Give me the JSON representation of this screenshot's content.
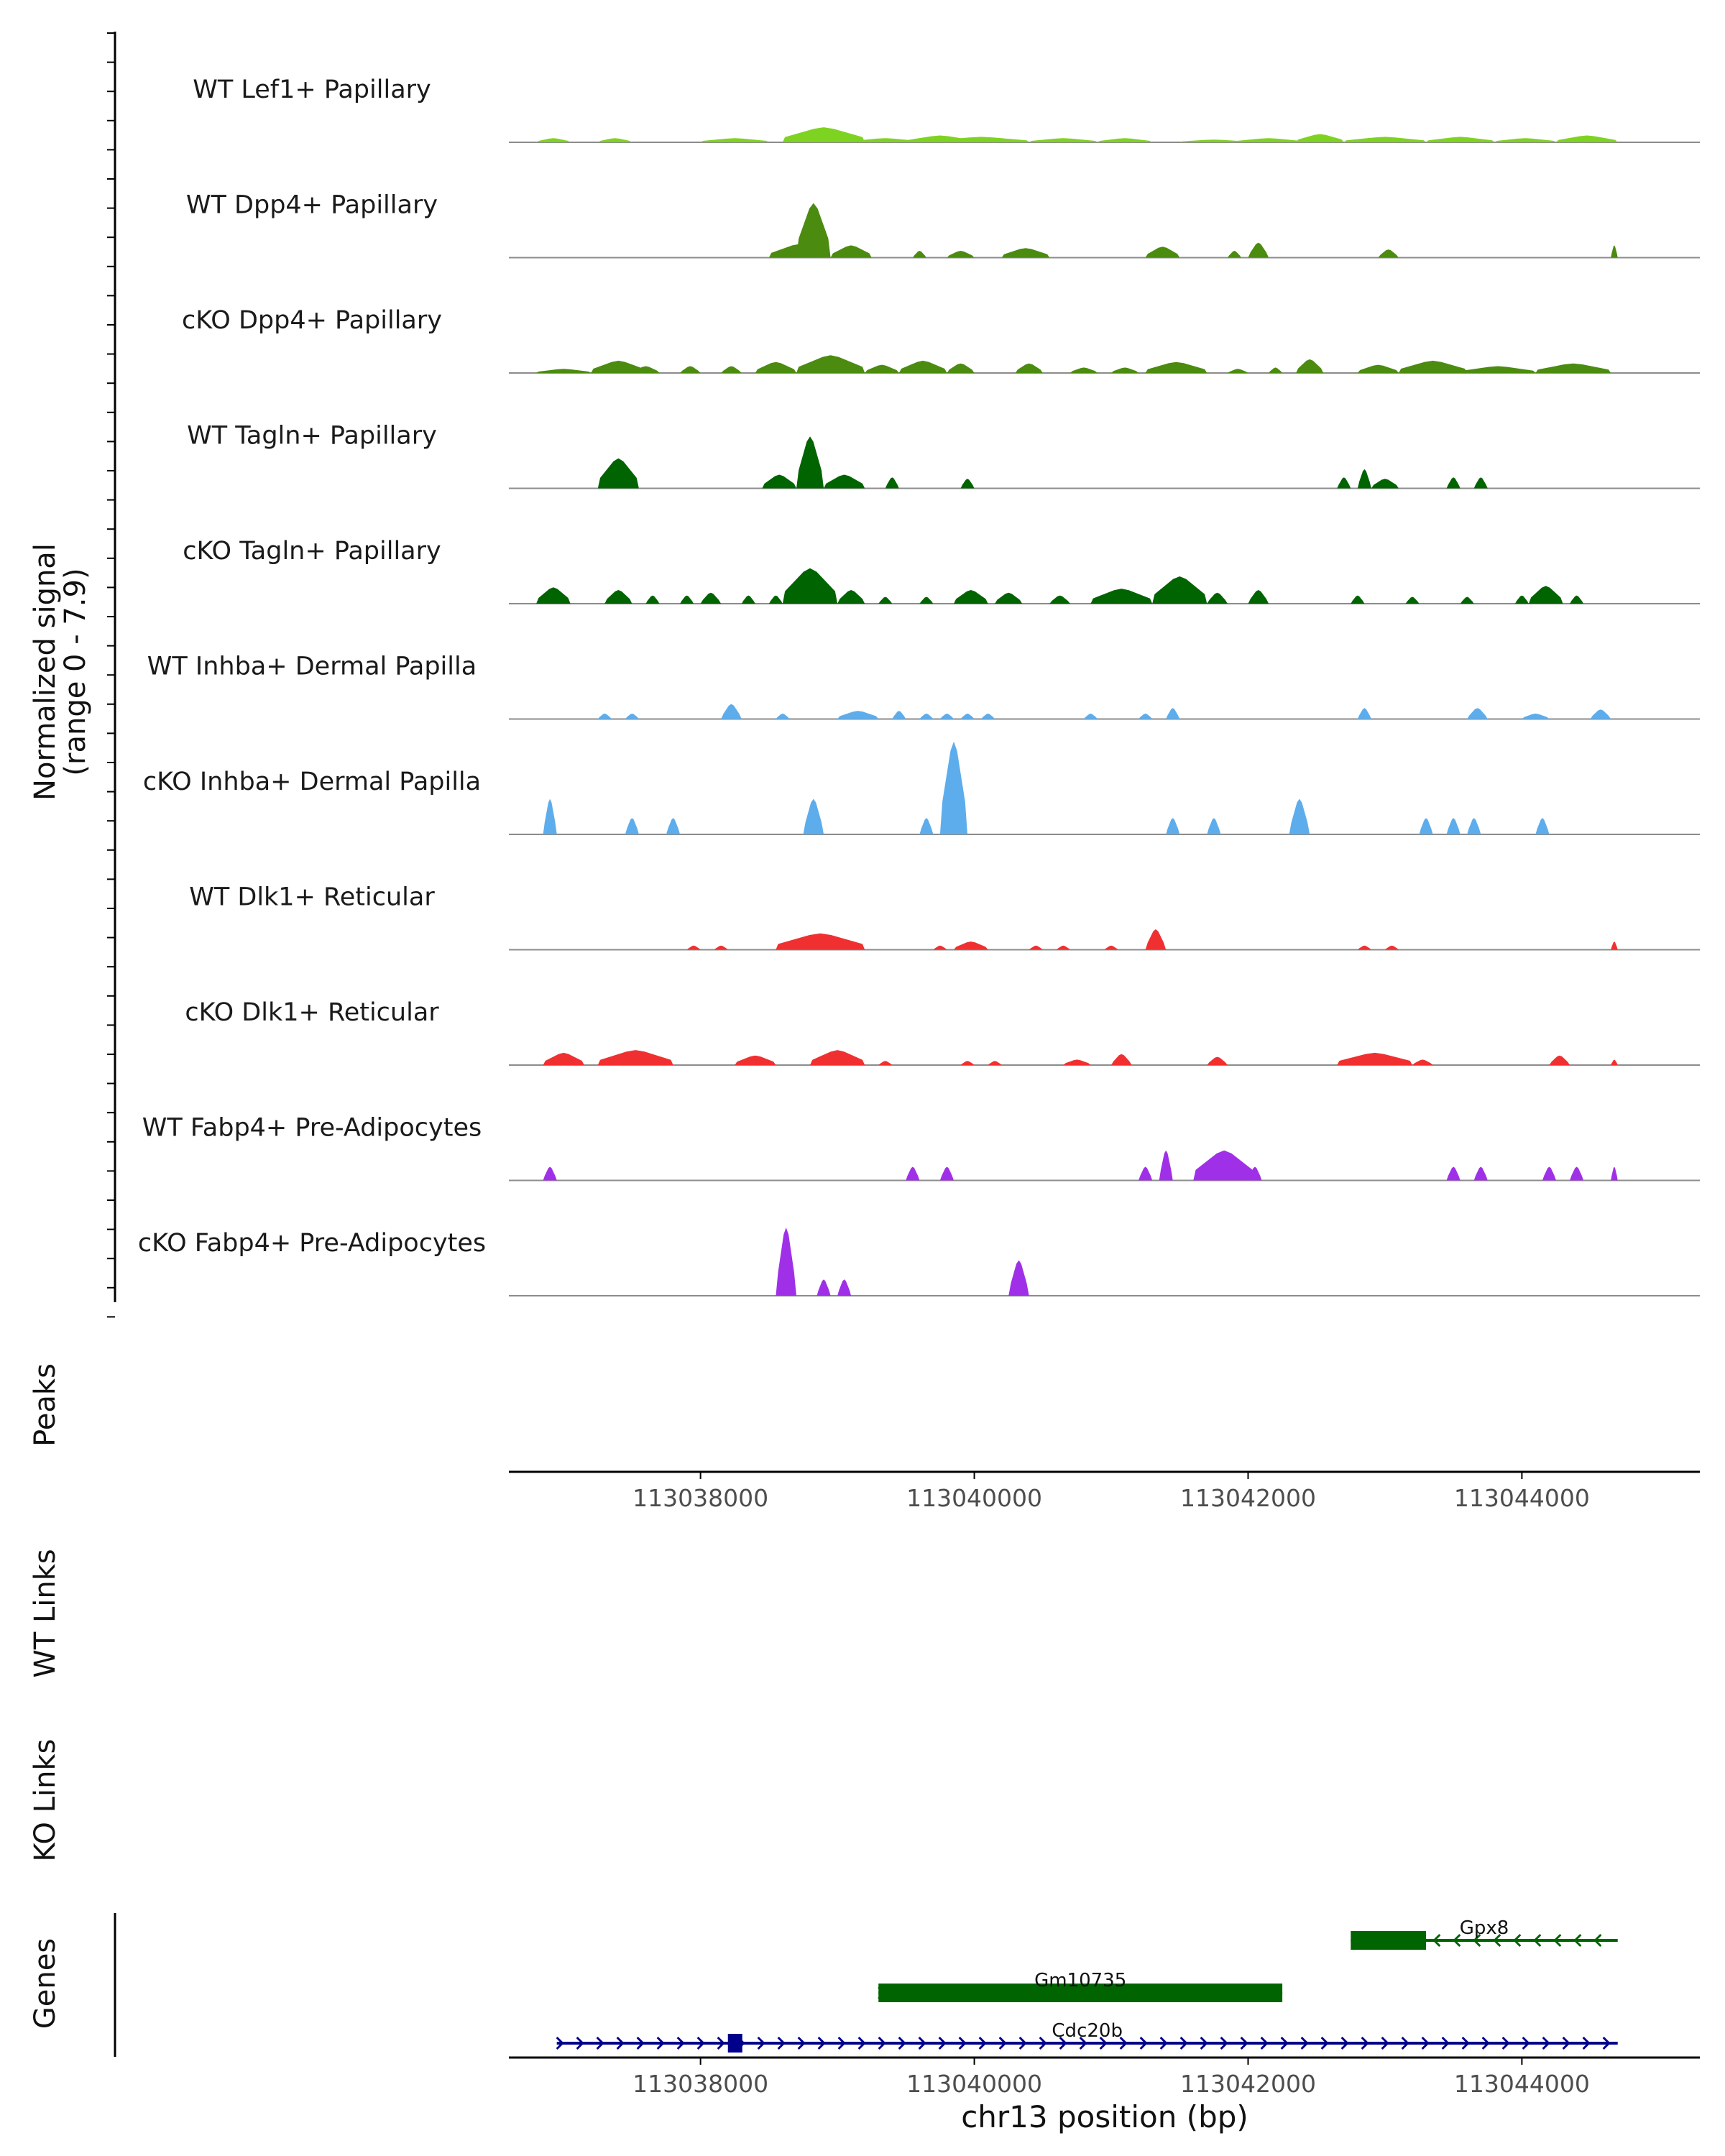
{
  "chart_data": {
    "type": "area",
    "title": "",
    "region": {
      "chrom": "chr13",
      "start": 113036600,
      "end": 113045300
    },
    "signal_axis": {
      "label": "Normalized signal",
      "range_label": "(range 0 - 7.9)",
      "ylim": [
        0,
        7.9
      ]
    },
    "tracks": [
      {
        "name": "WT Lef1+ Papillary",
        "color": "#7ED321",
        "peaks": [
          [
            113036800,
            113037050,
            0.3
          ],
          [
            113037250,
            113037500,
            0.3
          ],
          [
            113038000,
            113038500,
            0.3
          ],
          [
            113038600,
            113039200,
            1.1
          ],
          [
            113039100,
            113039600,
            0.3
          ],
          [
            113039500,
            113040000,
            0.5
          ],
          [
            113039700,
            113040400,
            0.4
          ],
          [
            113040400,
            113040900,
            0.3
          ],
          [
            113040900,
            113041300,
            0.3
          ],
          [
            113041500,
            113042000,
            0.2
          ],
          [
            113041900,
            113042400,
            0.3
          ],
          [
            113042350,
            113042700,
            0.6
          ],
          [
            113042700,
            113043300,
            0.4
          ],
          [
            113043300,
            113043800,
            0.4
          ],
          [
            113043800,
            113044250,
            0.3
          ],
          [
            113044250,
            113044700,
            0.5
          ]
        ]
      },
      {
        "name": "WT Dpp4+ Papillary",
        "color": "#4B8B0F",
        "peaks": [
          [
            113038500,
            113038950,
            1.0
          ],
          [
            113038700,
            113038950,
            4.0
          ],
          [
            113038950,
            113039250,
            0.9
          ],
          [
            113039550,
            113039650,
            0.5
          ],
          [
            113039800,
            113040000,
            0.5
          ],
          [
            113040200,
            113040550,
            0.7
          ],
          [
            113041250,
            113041500,
            0.8
          ],
          [
            113041850,
            113041950,
            0.5
          ],
          [
            113042000,
            113042150,
            1.1
          ],
          [
            113042950,
            113043100,
            0.6
          ],
          [
            113044650,
            113044700,
            0.9
          ]
        ]
      },
      {
        "name": "cKO Dpp4+ Papillary",
        "color": "#4B8B0F",
        "peaks": [
          [
            113036800,
            113037200,
            0.3
          ],
          [
            113037200,
            113037600,
            0.9
          ],
          [
            113037500,
            113037700,
            0.5
          ],
          [
            113037850,
            113038000,
            0.5
          ],
          [
            113038150,
            113038300,
            0.5
          ],
          [
            113038400,
            113038700,
            0.8
          ],
          [
            113038700,
            113039200,
            1.3
          ],
          [
            113039200,
            113039450,
            0.6
          ],
          [
            113039450,
            113039800,
            0.9
          ],
          [
            113039800,
            113040000,
            0.7
          ],
          [
            113040300,
            113040500,
            0.7
          ],
          [
            113040700,
            113040900,
            0.4
          ],
          [
            113041000,
            113041200,
            0.4
          ],
          [
            113041250,
            113041700,
            0.8
          ],
          [
            113041850,
            113042000,
            0.3
          ],
          [
            113042150,
            113042250,
            0.4
          ],
          [
            113042350,
            113042550,
            1.0
          ],
          [
            113042800,
            113043100,
            0.6
          ],
          [
            113043100,
            113043600,
            0.9
          ],
          [
            113043550,
            113044100,
            0.5
          ],
          [
            113044100,
            113044650,
            0.7
          ]
        ]
      },
      {
        "name": "WT Tagln+ Papillary",
        "color": "#006400",
        "peaks": [
          [
            113037250,
            113037550,
            2.2
          ],
          [
            113038450,
            113038700,
            1.0
          ],
          [
            113038700,
            113038900,
            3.8
          ],
          [
            113038900,
            113039200,
            1.0
          ],
          [
            113039350,
            113039450,
            0.8
          ],
          [
            113039900,
            113040000,
            0.7
          ],
          [
            113042650,
            113042750,
            0.8
          ],
          [
            113042800,
            113042900,
            1.4
          ],
          [
            113042900,
            113043100,
            0.7
          ],
          [
            113043450,
            113043550,
            0.8
          ],
          [
            113043650,
            113043750,
            0.8
          ]
        ]
      },
      {
        "name": "cKO Tagln+ Papillary",
        "color": "#006400",
        "peaks": [
          [
            113036800,
            113037050,
            1.2
          ],
          [
            113037300,
            113037500,
            1.0
          ],
          [
            113037600,
            113037700,
            0.6
          ],
          [
            113037850,
            113037950,
            0.6
          ],
          [
            113038000,
            113038150,
            0.8
          ],
          [
            113038300,
            113038400,
            0.6
          ],
          [
            113038500,
            113038600,
            0.6
          ],
          [
            113038600,
            113039000,
            2.6
          ],
          [
            113039000,
            113039200,
            1.0
          ],
          [
            113039300,
            113039400,
            0.5
          ],
          [
            113039600,
            113039700,
            0.5
          ],
          [
            113039850,
            113040100,
            1.0
          ],
          [
            113040150,
            113040350,
            0.8
          ],
          [
            113040550,
            113040700,
            0.6
          ],
          [
            113040850,
            113041300,
            1.1
          ],
          [
            113041300,
            113041700,
            2.0
          ],
          [
            113041700,
            113041850,
            0.8
          ],
          [
            113042000,
            113042150,
            1.0
          ],
          [
            113042750,
            113042850,
            0.6
          ],
          [
            113043150,
            113043250,
            0.5
          ],
          [
            113043550,
            113043650,
            0.5
          ],
          [
            113043950,
            113044050,
            0.6
          ],
          [
            113044050,
            113044300,
            1.3
          ],
          [
            113044350,
            113044450,
            0.6
          ]
        ]
      },
      {
        "name": "WT Inhba+ Dermal Papilla",
        "color": "#5DADEC",
        "peaks": [
          [
            113037250,
            113037350,
            0.4
          ],
          [
            113037450,
            113037550,
            0.4
          ],
          [
            113038150,
            113038300,
            1.1
          ],
          [
            113038550,
            113038650,
            0.4
          ],
          [
            113039000,
            113039300,
            0.6
          ],
          [
            113039400,
            113039500,
            0.6
          ],
          [
            113039600,
            113039700,
            0.4
          ],
          [
            113039750,
            113039850,
            0.4
          ],
          [
            113039900,
            113040000,
            0.4
          ],
          [
            113040050,
            113040150,
            0.4
          ],
          [
            113040800,
            113040900,
            0.4
          ],
          [
            113041200,
            113041300,
            0.4
          ],
          [
            113041400,
            113041500,
            0.8
          ],
          [
            113042800,
            113042900,
            0.8
          ],
          [
            113043600,
            113043750,
            0.8
          ],
          [
            113044000,
            113044200,
            0.4
          ],
          [
            113044500,
            113044650,
            0.7
          ]
        ]
      },
      {
        "name": "cKO Inhba+ Dermal Papilla",
        "color": "#5DADEC",
        "peaks": [
          [
            113036850,
            113036950,
            2.6
          ],
          [
            113037450,
            113037550,
            1.2
          ],
          [
            113037750,
            113037850,
            1.2
          ],
          [
            113038750,
            113038900,
            2.6
          ],
          [
            113039600,
            113039700,
            1.2
          ],
          [
            113039750,
            113039950,
            6.8
          ],
          [
            113041400,
            113041500,
            1.2
          ],
          [
            113041700,
            113041800,
            1.2
          ],
          [
            113042300,
            113042450,
            2.6
          ],
          [
            113043250,
            113043350,
            1.2
          ],
          [
            113043450,
            113043550,
            1.2
          ],
          [
            113043600,
            113043700,
            1.2
          ],
          [
            113044100,
            113044200,
            1.2
          ]
        ]
      },
      {
        "name": "WT Dlk1+ Reticular",
        "color": "#F03030",
        "peaks": [
          [
            113037900,
            113038000,
            0.3
          ],
          [
            113038100,
            113038200,
            0.3
          ],
          [
            113038550,
            113039200,
            1.2
          ],
          [
            113039700,
            113039800,
            0.3
          ],
          [
            113039850,
            113040100,
            0.6
          ],
          [
            113040400,
            113040500,
            0.3
          ],
          [
            113040600,
            113040700,
            0.3
          ],
          [
            113040950,
            113041050,
            0.3
          ],
          [
            113041250,
            113041400,
            1.5
          ],
          [
            113042800,
            113042900,
            0.3
          ],
          [
            113043000,
            113043100,
            0.3
          ],
          [
            113044650,
            113044700,
            0.6
          ]
        ]
      },
      {
        "name": "cKO Dlk1+ Reticular",
        "color": "#F03030",
        "peaks": [
          [
            113036850,
            113037150,
            0.9
          ],
          [
            113037250,
            113037800,
            1.1
          ],
          [
            113038250,
            113038550,
            0.7
          ],
          [
            113038800,
            113039200,
            1.1
          ],
          [
            113039300,
            113039400,
            0.3
          ],
          [
            113039900,
            113040000,
            0.3
          ],
          [
            113040100,
            113040200,
            0.3
          ],
          [
            113040650,
            113040850,
            0.4
          ],
          [
            113041000,
            113041150,
            0.8
          ],
          [
            113041700,
            113041850,
            0.6
          ],
          [
            113042650,
            113043200,
            0.9
          ],
          [
            113043200,
            113043350,
            0.4
          ],
          [
            113044200,
            113044350,
            0.7
          ],
          [
            113044650,
            113044700,
            0.4
          ]
        ]
      },
      {
        "name": "WT Fabp4+ Pre-Adipocytes",
        "color": "#A030E8",
        "peaks": [
          [
            113036850,
            113036950,
            1.0
          ],
          [
            113039500,
            113039600,
            1.0
          ],
          [
            113039750,
            113039850,
            1.0
          ],
          [
            113041200,
            113041300,
            1.0
          ],
          [
            113041350,
            113041450,
            2.2
          ],
          [
            113041600,
            113042050,
            2.2
          ],
          [
            113042000,
            113042100,
            1.0
          ],
          [
            113043450,
            113043550,
            1.0
          ],
          [
            113043650,
            113043750,
            1.0
          ],
          [
            113044150,
            113044250,
            1.0
          ],
          [
            113044350,
            113044450,
            1.0
          ],
          [
            113044650,
            113044700,
            1.0
          ]
        ]
      },
      {
        "name": "cKO Fabp4+ Pre-Adipocytes",
        "color": "#A030E8",
        "peaks": [
          [
            113038550,
            113038700,
            5.0
          ],
          [
            113038850,
            113038950,
            1.2
          ],
          [
            113039000,
            113039100,
            1.2
          ],
          [
            113040250,
            113040400,
            2.6
          ]
        ]
      }
    ],
    "peaks_track": {
      "label": "Peaks"
    },
    "links_tracks": [
      {
        "label": "WT Links"
      },
      {
        "label": "KO Links"
      }
    ],
    "genes_track": {
      "label": "Genes",
      "genes": [
        {
          "name": "Gpx8",
          "start": 113042750,
          "end": 113044700,
          "strand": "-",
          "color": "#006400",
          "exons": [
            [
              113042750,
              113043300
            ]
          ]
        },
        {
          "name": "Gm10735",
          "start": 113039300,
          "end": 113042250,
          "strand": "+",
          "color": "#006400",
          "exons": [
            [
              113039300,
              113042250
            ]
          ]
        },
        {
          "name": "Cdc20b",
          "start": 113036950,
          "end": 113044700,
          "strand": "+",
          "color": "#00008B",
          "exons": [
            [
              113038200,
              113038300
            ]
          ]
        }
      ]
    },
    "x_axis": {
      "label": "chr13 position (bp)",
      "ticks": [
        113038000,
        113040000,
        113042000,
        113044000
      ],
      "tick_labels": [
        "113038000",
        "113040000",
        "113042000",
        "113044000"
      ]
    }
  }
}
